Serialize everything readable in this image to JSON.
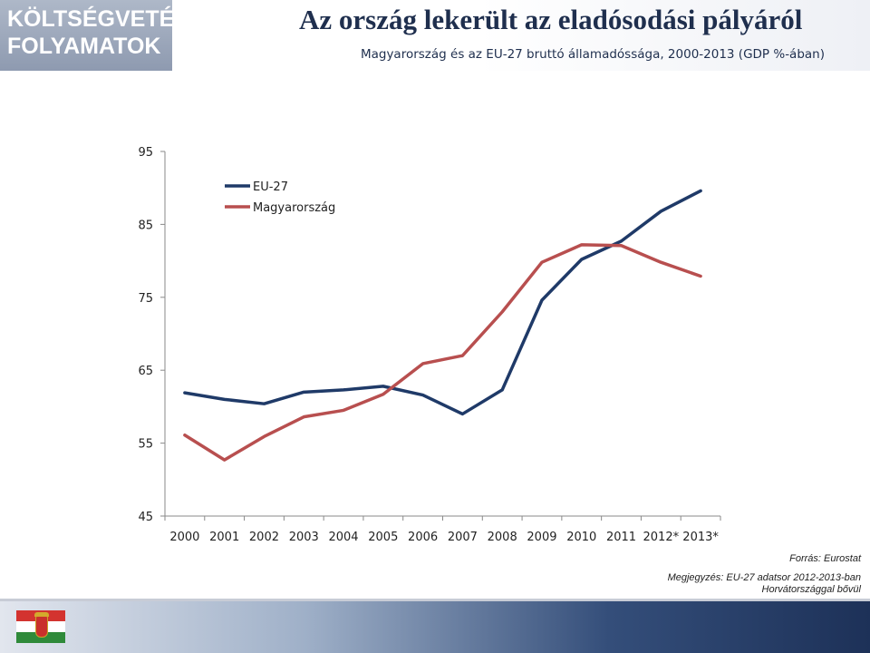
{
  "header": {
    "section_title": "KÖLTSÉGVETÉSI\nFOLYAMATOK",
    "title": "Az ország lekerült az eladósodási pályáról",
    "subtitle": "Magyarország és az EU-27 bruttó államadóssága, 2000-2013 (GDP %-ában)"
  },
  "chart_data": {
    "type": "line",
    "title": "",
    "xlabel": "",
    "ylabel": "",
    "categories": [
      "2000",
      "2001",
      "2002",
      "2003",
      "2004",
      "2005",
      "2006",
      "2007",
      "2008",
      "2009",
      "2010",
      "2011",
      "2012*",
      "2013*"
    ],
    "yticks": [
      45,
      55,
      65,
      75,
      85,
      95
    ],
    "ylim": [
      45,
      95
    ],
    "legend_position": "top-left",
    "grid": false,
    "series": [
      {
        "name": "EU-27",
        "color": "#1f3a68",
        "values": [
          61.9,
          61.0,
          60.4,
          62.0,
          62.3,
          62.8,
          61.6,
          59.0,
          62.3,
          74.6,
          80.2,
          82.7,
          86.8,
          89.6
        ]
      },
      {
        "name": "Magyarország",
        "color": "#b84f4f",
        "values": [
          56.1,
          52.7,
          55.9,
          58.6,
          59.5,
          61.7,
          65.9,
          67.0,
          73.0,
          79.8,
          82.2,
          82.1,
          79.8,
          77.9
        ]
      }
    ]
  },
  "source": "Forrás: Eurostat",
  "note_line1": "Megjegyzés: EU-27 adatsor 2012-2013-ban",
  "note_line2": "Horvátországgal bővül"
}
